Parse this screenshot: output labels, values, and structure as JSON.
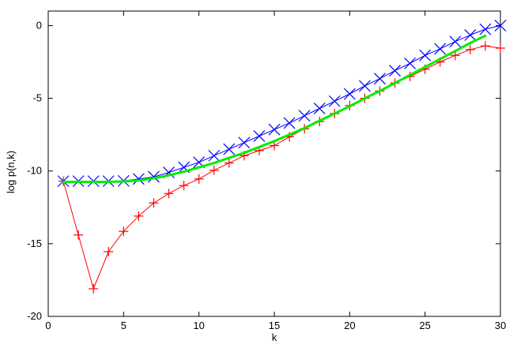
{
  "chart_data": {
    "type": "line",
    "xlabel": "k",
    "ylabel": "log p(n,k)",
    "xlim": [
      0,
      30
    ],
    "ylim": [
      -20,
      1
    ],
    "x_ticks": [
      0,
      5,
      10,
      15,
      20,
      25,
      30
    ],
    "y_ticks": [
      0,
      -5,
      -10,
      -15,
      -20
    ],
    "grid": false,
    "legend": "none",
    "series": [
      {
        "color": "#ff0000",
        "marker": "plus",
        "x": [
          1,
          2,
          3,
          4,
          5,
          6,
          7,
          8,
          9,
          10,
          11,
          12,
          13,
          14,
          15,
          16,
          17,
          18,
          19,
          20,
          21,
          22,
          23,
          24,
          25,
          26,
          27,
          28,
          29,
          30
        ],
        "y": [
          -10.7,
          -14.4,
          -18.1,
          -15.55,
          -14.15,
          -13.1,
          -12.2,
          -11.55,
          -11.0,
          -10.55,
          -9.95,
          -9.45,
          -8.95,
          -8.6,
          -8.25,
          -7.65,
          -7.1,
          -6.6,
          -6.05,
          -5.5,
          -5.0,
          -4.5,
          -3.95,
          -3.5,
          -3.0,
          -2.5,
          -2.05,
          -1.65,
          -1.4,
          -1.55
        ]
      },
      {
        "color": "#0000ff",
        "marker": "cross",
        "x": [
          1,
          2,
          3,
          4,
          5,
          6,
          7,
          8,
          9,
          10,
          11,
          12,
          13,
          14,
          15,
          16,
          17,
          18,
          19,
          20,
          21,
          22,
          23,
          24,
          25,
          26,
          27,
          28,
          29,
          30
        ],
        "y": [
          -10.7,
          -10.7,
          -10.7,
          -10.7,
          -10.68,
          -10.55,
          -10.4,
          -10.1,
          -9.75,
          -9.4,
          -8.95,
          -8.5,
          -8.05,
          -7.6,
          -7.15,
          -6.7,
          -6.2,
          -5.7,
          -5.2,
          -4.7,
          -4.15,
          -3.65,
          -3.1,
          -2.6,
          -2.05,
          -1.6,
          -1.1,
          -0.65,
          -0.25,
          0.0
        ]
      },
      {
        "color": "#00ee00",
        "marker": "none",
        "x": [
          1,
          2,
          3,
          4,
          5,
          6,
          7,
          8,
          9,
          10,
          11,
          12,
          13,
          14,
          15,
          16,
          17,
          18,
          19,
          20,
          21,
          22,
          23,
          24,
          25,
          26,
          27,
          28,
          29
        ],
        "y": [
          -10.75,
          -10.75,
          -10.75,
          -10.75,
          -10.72,
          -10.65,
          -10.5,
          -10.3,
          -10.05,
          -9.75,
          -9.45,
          -9.1,
          -8.75,
          -8.35,
          -7.95,
          -7.5,
          -7.05,
          -6.55,
          -6.05,
          -5.55,
          -5.0,
          -4.5,
          -3.95,
          -3.4,
          -2.85,
          -2.3,
          -1.75,
          -1.2,
          -0.7
        ]
      }
    ]
  }
}
